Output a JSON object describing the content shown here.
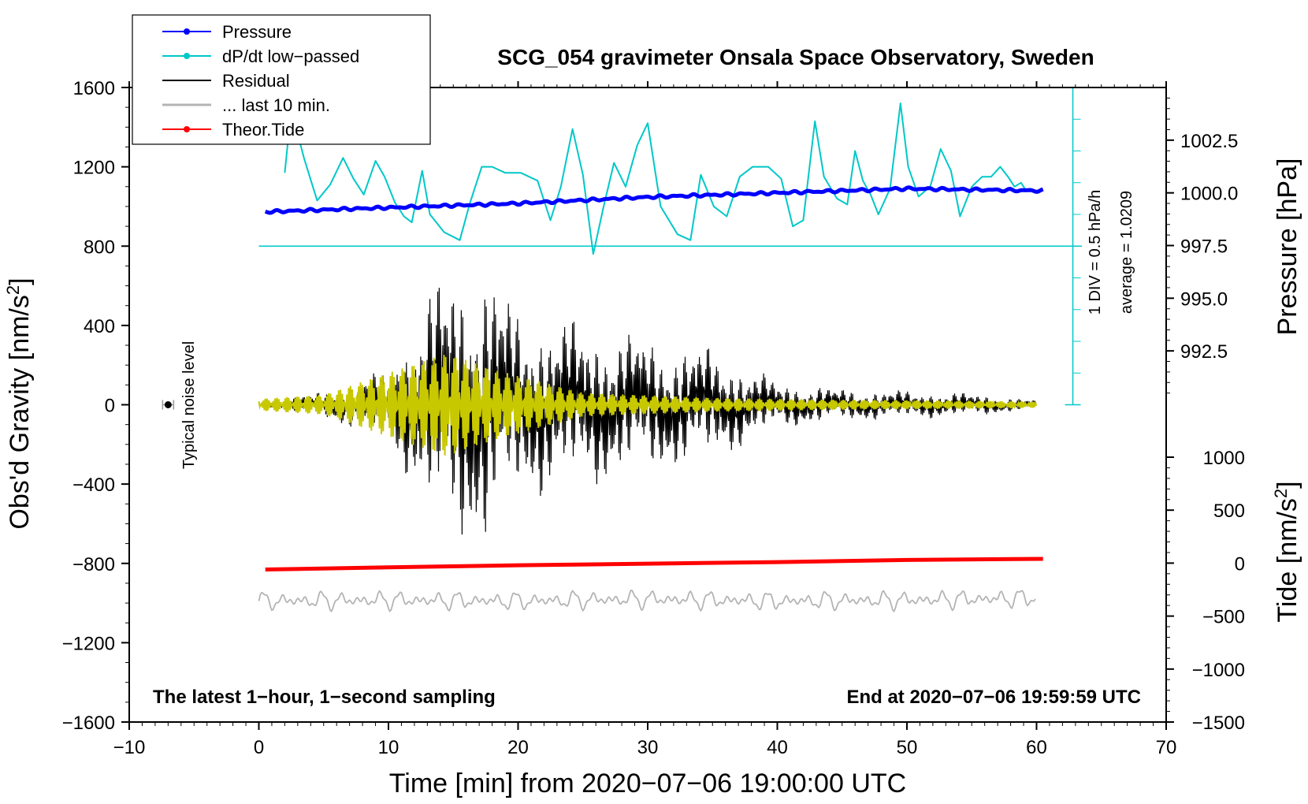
{
  "chart_data": {
    "type": "line",
    "title": "SCG_054 gravimeter Onsala Space Observatory, Sweden",
    "xlabel": "Time [min] from 2020−07−06 19:00:00 UTC",
    "ylabel_left": "Obs'd Gravity [nm/s²]",
    "ylabel_right_top": "Pressure [hPa]",
    "ylabel_right_bottom": "Tide [nm/s²]",
    "x_range": [
      -10,
      70
    ],
    "y_range": [
      -1600,
      1600
    ],
    "x_ticks": [
      -10,
      0,
      10,
      20,
      30,
      40,
      50,
      60,
      70
    ],
    "x_tick_labels": [
      "−10",
      "0",
      "10",
      "20",
      "30",
      "40",
      "50",
      "60",
      "70"
    ],
    "y_ticks": [
      -1600,
      -1200,
      -800,
      -400,
      0,
      400,
      800,
      1200,
      1600
    ],
    "y_tick_labels": [
      "−1600",
      "−1200",
      "−800",
      "−400",
      "0",
      "400",
      "800",
      "1200",
      "1600"
    ],
    "pressure_axis": {
      "range_hPa": [
        990,
        1005
      ],
      "ticks": [
        992.5,
        995.0,
        997.5,
        1000.0,
        1002.5
      ],
      "tick_labels": [
        "992.5",
        "995.0",
        "997.5",
        "1000.0",
        "1002.5"
      ]
    },
    "tide_axis": {
      "range": [
        -1500,
        1500
      ],
      "ticks": [
        -1500,
        -1000,
        -500,
        0,
        500,
        1000
      ],
      "tick_labels": [
        "−1500",
        "−1000",
        "−500",
        "0",
        "500",
        "1000"
      ]
    },
    "legend": [
      {
        "label": "Pressure",
        "color": "#0000ff",
        "marker": true
      },
      {
        "label": "dP/dt low−passed",
        "color": "#00c8c8",
        "marker": true
      },
      {
        "label": "Residual",
        "color": "#000000",
        "marker": false
      },
      {
        "label": "... last 10 min.",
        "color": "#b4b4b4",
        "marker": false
      },
      {
        "label": "Theor.Tide",
        "color": "#ff0000",
        "marker": true
      }
    ],
    "series": [
      {
        "name": "Pressure",
        "axis": "pressure_hPa",
        "color": "#0000ff",
        "x": [
          0.5,
          10,
          20,
          30,
          40,
          50,
          60.5
        ],
        "values": [
          999.1,
          999.3,
          999.5,
          999.8,
          1000.0,
          1000.2,
          1000.1
        ]
      },
      {
        "name": "dP/dt low−passed",
        "axis": "gravity_scale",
        "color": "#00c8c8",
        "x": [
          2,
          2.5,
          3.5,
          4.5,
          5.5,
          6.5,
          7.3,
          8.1,
          9.0,
          9.7,
          10.5,
          11.2,
          11.8,
          12.6,
          13.2,
          14.3,
          15.5,
          16.3,
          17.2,
          18.0,
          19.0,
          20.2,
          21.5,
          22.5,
          23.3,
          24.2,
          25.0,
          25.8,
          26.6,
          27.4,
          28.3,
          29.2,
          30.0,
          31.0,
          32.3,
          33.3,
          34.1,
          35.1,
          36.1,
          37.1,
          38.1,
          39.3,
          40.3,
          41.2,
          42.0,
          42.9,
          43.6,
          44.6,
          45.4,
          46.0,
          46.6,
          47.2,
          47.8,
          48.7,
          49.5,
          50.1,
          50.9,
          51.8,
          52.6,
          53.4,
          54.1,
          55.0,
          55.8,
          56.5,
          57.2,
          57.8,
          58.3,
          58.8,
          59.2,
          59.5,
          60.0
        ],
        "values": [
          1170,
          1490,
          1240,
          1030,
          1110,
          1245,
          1140,
          1060,
          1230,
          1150,
          1020,
          950,
          920,
          1180,
          960,
          870,
          830,
          1020,
          1200,
          1200,
          1170,
          1170,
          1130,
          930,
          1100,
          1390,
          1160,
          760,
          1000,
          1220,
          1100,
          1310,
          1420,
          1000,
          860,
          830,
          1160,
          1000,
          950,
          1150,
          1200,
          1200,
          1140,
          900,
          930,
          1430,
          1150,
          1040,
          1010,
          1280,
          1130,
          1060,
          960,
          1090,
          1520,
          1200,
          1050,
          1100,
          1290,
          1180,
          950,
          1100,
          1150,
          1150,
          1200,
          1150,
          1100,
          1120,
          1080,
          1090,
          1070
        ]
      },
      {
        "name": "Residual",
        "axis": "gravity",
        "color": "#000000",
        "x": [
          0,
          5,
          10,
          14,
          17.5,
          20,
          25,
          30,
          35,
          40,
          45,
          50,
          55,
          60
        ],
        "values": [
          0,
          60,
          150,
          560,
          610,
          400,
          350,
          290,
          240,
          100,
          70,
          60,
          50,
          20
        ],
        "envelope": true
      },
      {
        "name": "... last 10 min.",
        "axis": "gravity",
        "color": "#b4b4b4",
        "x": [
          0,
          10,
          20,
          30,
          40,
          50,
          60
        ],
        "values": [
          -990,
          -985,
          -990,
          -980,
          -990,
          -985,
          -975
        ]
      },
      {
        "name": "Theor.Tide",
        "axis": "tide",
        "color": "#ff0000",
        "x": [
          0.5,
          10,
          20,
          30,
          40,
          50,
          60.5
        ],
        "values": [
          -60,
          -40,
          -20,
          -5,
          10,
          30,
          40
        ]
      },
      {
        "name": "low−passed residual",
        "axis": "gravity",
        "color": "#c8c800",
        "x": [
          0,
          5,
          9.5,
          14.5,
          18,
          25,
          35,
          45,
          55,
          60
        ],
        "values": [
          30,
          50,
          150,
          260,
          180,
          60,
          35,
          25,
          20,
          15
        ],
        "envelope": true
      }
    ],
    "scale_bar": {
      "label": "1 DIV = 0.5 hPa/h",
      "average_label": "average = 1.0209"
    },
    "annotations": {
      "noise_label": "Typical noise level",
      "bottom_left": "The latest 1−hour, 1−second sampling",
      "bottom_right": "End at 2020−07−06 19:59:59 UTC"
    }
  }
}
